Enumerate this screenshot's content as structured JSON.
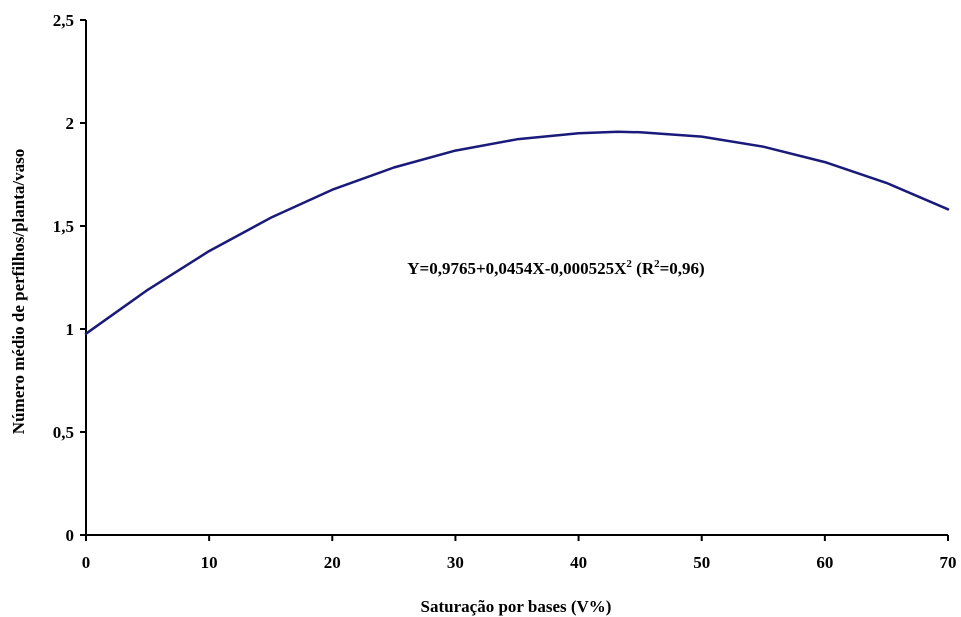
{
  "chart_data": {
    "type": "line",
    "title": "",
    "xlabel": "Saturação por bases (V%)",
    "ylabel": "Número médio de perfilhos/planta/vaso",
    "xlim": [
      0,
      70
    ],
    "ylim": [
      0,
      2.5
    ],
    "x_ticks": [
      0,
      10,
      20,
      30,
      40,
      50,
      60,
      70
    ],
    "x_tick_labels": [
      "0",
      "10",
      "20",
      "30",
      "40",
      "50",
      "60",
      "70"
    ],
    "y_ticks": [
      0,
      0.5,
      1,
      1.5,
      2,
      2.5
    ],
    "y_tick_labels": [
      "0",
      "0,5",
      "1",
      "1,5",
      "2",
      "2,5"
    ],
    "grid": false,
    "legend": "none",
    "series": [
      {
        "color": "#1a1a7a",
        "x": [
          0,
          5,
          10,
          15,
          20,
          25,
          30,
          35,
          40,
          43.2,
          45,
          50,
          55,
          60,
          65,
          70
        ],
        "y": [
          0.977,
          1.19,
          1.378,
          1.54,
          1.676,
          1.784,
          1.866,
          1.921,
          1.95,
          1.958,
          1.955,
          1.934,
          1.885,
          1.81,
          1.709,
          1.581
        ]
      }
    ],
    "annotation": {
      "prefix": "Y=0,9765+0,0454X-0,000525X",
      "sup1": "2",
      "middle": " (R",
      "sup2": "2",
      "suffix": "=0,96)"
    }
  }
}
